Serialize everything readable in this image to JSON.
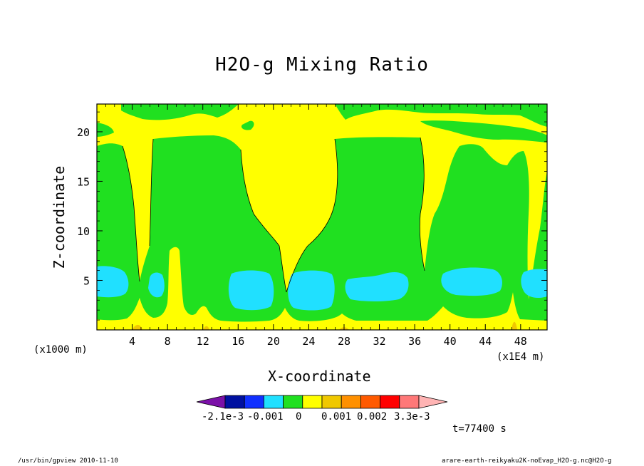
{
  "chart_data": {
    "type": "contour",
    "title": "H2O-g Mixing Ratio",
    "xlabel": "X-coordinate",
    "ylabel": "Z-coordinate",
    "x_unit_left": "(x1000 m)",
    "x_unit_right": "(x1E4 m)",
    "xlim": [
      0,
      51
    ],
    "ylim": [
      0,
      22.8
    ],
    "xticks": [
      4,
      8,
      12,
      16,
      20,
      24,
      28,
      32,
      36,
      40,
      44,
      48
    ],
    "yticks": [
      5,
      10,
      15,
      20
    ],
    "colorbar": {
      "colors": [
        "#7b10a8",
        "#0010a0",
        "#1030ff",
        "#20e0ff",
        "#20e020",
        "#ffff00",
        "#f0c800",
        "#ff9000",
        "#ff5a00",
        "#ff0000",
        "#ff7878",
        "#ffb4b4"
      ],
      "tick_labels": [
        "-2.1e-3",
        "-0.001",
        "0",
        "0.001",
        "0.002",
        "3.3e-3"
      ]
    },
    "time_label": "t=77400 s"
  },
  "footer": {
    "left": "/usr/bin/gpview   2010-11-10",
    "right": "arare-earth-reikyaku2K-noEvap_H2O-g.nc@H2O-g"
  }
}
